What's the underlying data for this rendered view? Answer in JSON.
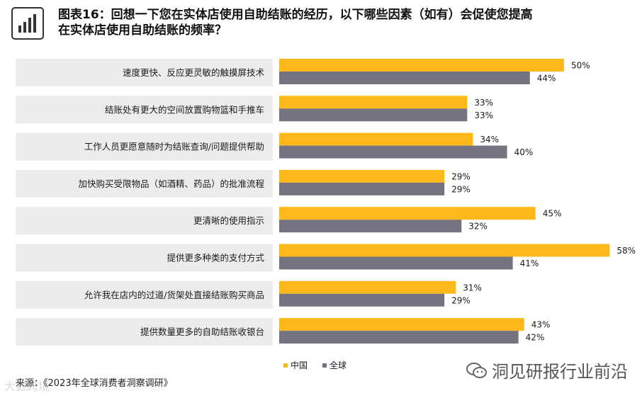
{
  "header": {
    "title": "图表16：回想一下您在实体店使用自助结账的经历，以下哪些因素（如有）会促使您提高在实体店使用自助结账的频率？"
  },
  "icons": {
    "chart_icon": "bar-chart-icon",
    "watermark_icon": "wechat-icon"
  },
  "colors": {
    "china": "#FFB81C",
    "global": "#747480",
    "label_bg": "#ECECEC"
  },
  "chart_data": {
    "type": "bar",
    "orientation": "horizontal",
    "categories": [
      "速度更快、反应更灵敏的触摸屏技术",
      "结账处有更大的空间放置购物篮和手推车",
      "工作人员更愿意随时为结账查询/问题提供帮助",
      "加快购买受限物品（如酒精、药品）的批准流程",
      "更清晰的使用指示",
      "提供更多种类的支付方式",
      "允许我在店内的过道/货架处直接结账购买商品",
      "提供数量更多的自助结账收银台"
    ],
    "series": [
      {
        "name": "中国",
        "values": [
          50,
          33,
          34,
          29,
          45,
          58,
          31,
          43
        ]
      },
      {
        "name": "全球",
        "values": [
          44,
          33,
          40,
          29,
          32,
          41,
          29,
          42
        ]
      }
    ],
    "value_suffix": "%",
    "legend_position": "bottom"
  },
  "footer": {
    "source": "来源：《2023年全球消费者洞察调研》",
    "watermark_right": "洞见研报行业前沿",
    "watermark_left": "大数跨境"
  }
}
